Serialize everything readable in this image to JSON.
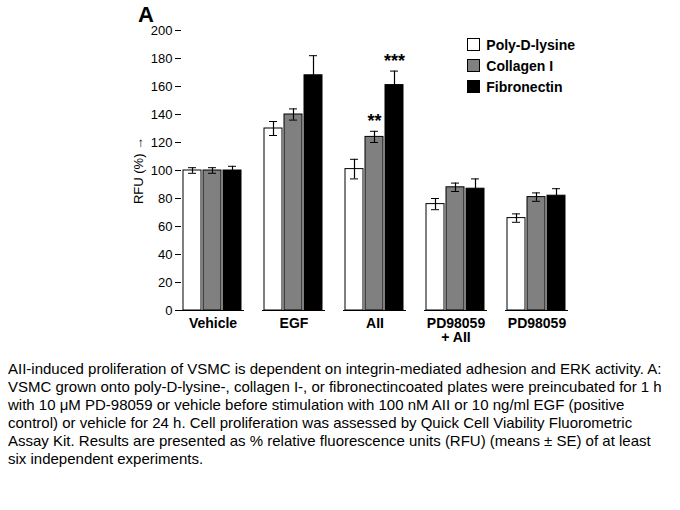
{
  "chart_data": {
    "type": "bar",
    "title": "A",
    "y_label": "RFU (%)",
    "categories": [
      "Vehicle",
      "EGF",
      "AII",
      "PD98059\n+ AII",
      "PD98059"
    ],
    "series": [
      {
        "name": "Poly-D-lysine",
        "color": "#ffffff",
        "values": [
          100,
          130,
          101,
          76,
          66
        ],
        "errors": [
          2,
          5,
          7,
          4,
          3
        ]
      },
      {
        "name": "Collagen I",
        "color": "#808080",
        "values": [
          100,
          140,
          124,
          88,
          81
        ],
        "errors": [
          2,
          4,
          4,
          3,
          3
        ]
      },
      {
        "name": "Fibronectin",
        "color": "#000000",
        "values": [
          100,
          168,
          161,
          87,
          82
        ],
        "errors": [
          3,
          14,
          10,
          7,
          5
        ]
      }
    ],
    "annotations": [
      {
        "category": "AII",
        "series": "Collagen I",
        "text": "**"
      },
      {
        "category": "AII",
        "series": "Fibronectin",
        "text": "***"
      }
    ],
    "ylim": [
      0,
      200
    ],
    "yticks": [
      0,
      20,
      40,
      60,
      80,
      100,
      120,
      140,
      160,
      180,
      200
    ],
    "legend": "top-right",
    "caption": "AII-induced proliferation of VSMC is dependent on integrin-mediated adhesion and ERK activity. A: VSMC grown onto poly-D-lysine-, collagen I-, or fibronectincoated plates were preincubated for 1 h with 10 μM PD-98059 or vehicle before stimulation with 100 nM AII or 10 ng/ml EGF (positive control) or vehicle for 24 h. Cell proliferation was assessed by Quick Cell Viability Fluorometric Assay Kit. Results are presented as % relative fluorescence units (RFU) (means ± SE) of at least six independent experiments."
  }
}
